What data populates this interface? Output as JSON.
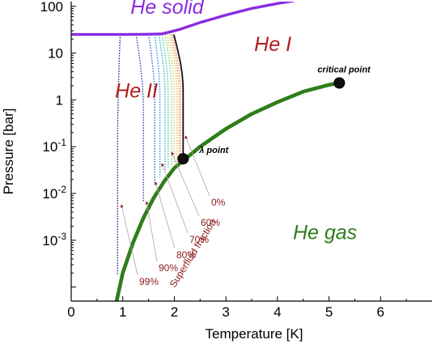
{
  "chart_data": {
    "type": "line",
    "xlabel": "Temperature [K]",
    "ylabel": "Pressure [bar]",
    "xlim": [
      0,
      7
    ],
    "ylim_log10": [
      -4.3,
      2.1
    ],
    "y_scale": "log",
    "grid": false,
    "x_ticks": [
      0,
      1,
      2,
      3,
      4,
      5,
      6
    ],
    "x_tick_labels": [
      "0",
      "1",
      "2",
      "3",
      "4",
      "5",
      "6"
    ],
    "y_ticks": [
      {
        "value": 100,
        "base": "100",
        "exp": ""
      },
      {
        "value": 10,
        "base": "10",
        "exp": ""
      },
      {
        "value": 1,
        "base": "1",
        "exp": ""
      },
      {
        "value": 0.1,
        "base": "10",
        "exp": "-1"
      },
      {
        "value": 0.01,
        "base": "10",
        "exp": "-2"
      },
      {
        "value": 0.001,
        "base": "10",
        "exp": "-3"
      }
    ],
    "regions": [
      {
        "text": "He solid",
        "color": "#8a2be2",
        "x": 1.15,
        "y": 100
      },
      {
        "text": "He I",
        "color": "#b01c1c",
        "x": 3.55,
        "y": 16
      },
      {
        "text": "He II",
        "color": "#b01c1c",
        "x": 0.85,
        "y": 1.6
      },
      {
        "text": "He gas",
        "color": "#2e7d1a",
        "x": 4.3,
        "y": 0.0015
      }
    ],
    "phase_boundaries": [
      {
        "name": "melting",
        "color": "#8a2be2",
        "x": [
          0,
          1.0,
          1.5,
          1.76,
          1.9,
          2.1,
          2.5,
          3.0,
          3.5,
          4.0,
          4.3
        ],
        "y": [
          25,
          25,
          25.3,
          25.8,
          28,
          32,
          45,
          65,
          90,
          115,
          130
        ]
      },
      {
        "name": "vaporization",
        "color": "#2e7d1a",
        "x": [
          0.88,
          1.0,
          1.2,
          1.4,
          1.6,
          1.8,
          2.0,
          2.17,
          2.5,
          3.0,
          3.5,
          4.0,
          4.5,
          5.0,
          5.2
        ],
        "y": [
          5e-05,
          0.0002,
          0.0009,
          0.003,
          0.008,
          0.018,
          0.035,
          0.05,
          0.1,
          0.24,
          0.5,
          0.9,
          1.5,
          2.1,
          2.3
        ]
      }
    ],
    "superfluid_fraction_lines": [
      {
        "fraction": "99%",
        "color": "#2c2c8e",
        "T_solid": 0.95,
        "T_bottom": 0.9,
        "y_bottom": 0.00018,
        "curve": 0.35
      },
      {
        "fraction": "90%",
        "color": "#3a47b5",
        "T_solid": 1.26,
        "T_bottom": 1.4,
        "y_bottom": 0.0065,
        "curve": 0.15
      },
      {
        "fraction": "80%",
        "color": "#2c6fcf",
        "T_solid": 1.5,
        "T_bottom": 1.62,
        "y_bottom": 0.0155,
        "curve": 0.11
      },
      {
        "fraction": "",
        "color": "#3f8fd9",
        "T_solid": 1.62,
        "T_bottom": 1.72,
        "y_bottom": 0.022,
        "curve": 0.09
      },
      {
        "fraction": "70%",
        "color": "#2fb5c9",
        "T_solid": 1.7,
        "T_bottom": 1.82,
        "y_bottom": 0.03,
        "curve": 0.08
      },
      {
        "fraction": "",
        "color": "#4cc9a6",
        "T_solid": 1.76,
        "T_bottom": 1.88,
        "y_bottom": 0.034,
        "curve": 0.07
      },
      {
        "fraction": "60%",
        "color": "#8ad17a",
        "T_solid": 1.82,
        "T_bottom": 1.95,
        "y_bottom": 0.038,
        "curve": 0.06
      },
      {
        "fraction": "",
        "color": "#c9d96a",
        "T_solid": 1.86,
        "T_bottom": 2.0,
        "y_bottom": 0.042,
        "curve": 0.05
      },
      {
        "fraction": "",
        "color": "#e8c45a",
        "T_solid": 1.9,
        "T_bottom": 2.05,
        "y_bottom": 0.046,
        "curve": 0.045
      },
      {
        "fraction": "",
        "color": "#f0a85a",
        "T_solid": 1.93,
        "T_bottom": 2.09,
        "y_bottom": 0.049,
        "curve": 0.04
      },
      {
        "fraction": "",
        "color": "#f08a6a",
        "T_solid": 1.96,
        "T_bottom": 2.12,
        "y_bottom": 0.051,
        "curve": 0.035
      },
      {
        "fraction": "0%",
        "color": "#111111",
        "T_solid": 1.99,
        "T_bottom": 2.17,
        "y_bottom": 0.055,
        "curve": 0.03
      }
    ],
    "points": [
      {
        "name": "critical point",
        "x": 5.2,
        "y": 2.3
      },
      {
        "name": "λ point",
        "x": 2.17,
        "y": 0.055
      }
    ],
    "fraction_labels": [
      "0%",
      "60%",
      "70%",
      "80%",
      "90%",
      "99%"
    ],
    "annotation": "Superfluid fraction",
    "colors": {
      "solid": "#8a2be2",
      "gas": "#2e7d1a",
      "label_red": "#b01c1c",
      "fraction_red": "#8b1a1a"
    }
  }
}
